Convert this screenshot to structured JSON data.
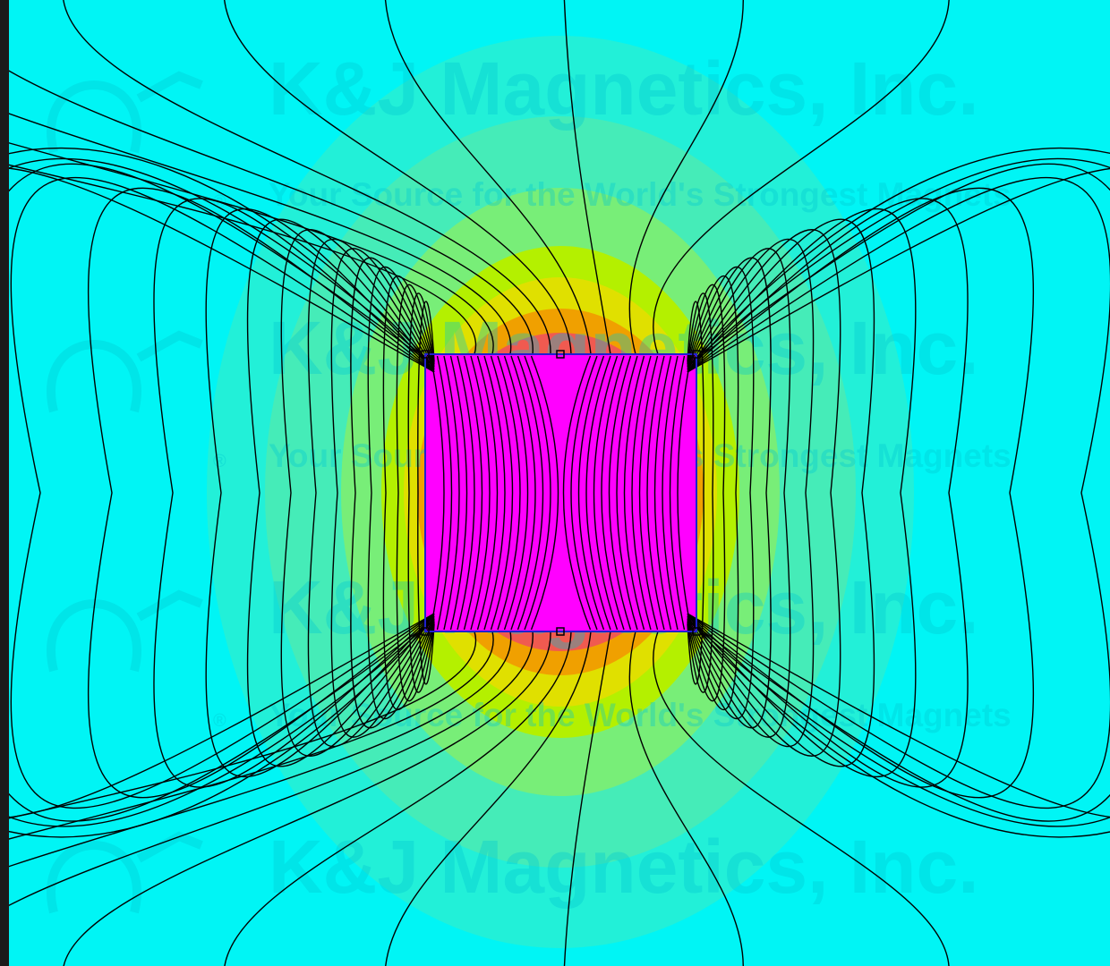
{
  "watermark": {
    "company": "K&J Magnetics, Inc.",
    "tagline": "Your Source for the World's Strongest Magnets",
    "registered": "®"
  },
  "colors": {
    "background": "#00f5f5",
    "zone_ring1": "#22f0d8",
    "zone_ring2": "#45ecb8",
    "zone_ring3": "#78ee78",
    "zone_ring4": "#b4f000",
    "zone_ring5": "#e0e000",
    "zone_ring6": "#f0a000",
    "zone_ring7": "#f05a50",
    "magnet_fill": "#ff00ff",
    "magnet_outline": "#2020d0",
    "field_lines": "#000000",
    "watermark": "#00c8d2"
  },
  "magnet": {
    "shape": "rectangle",
    "outline_nodes": 6
  }
}
